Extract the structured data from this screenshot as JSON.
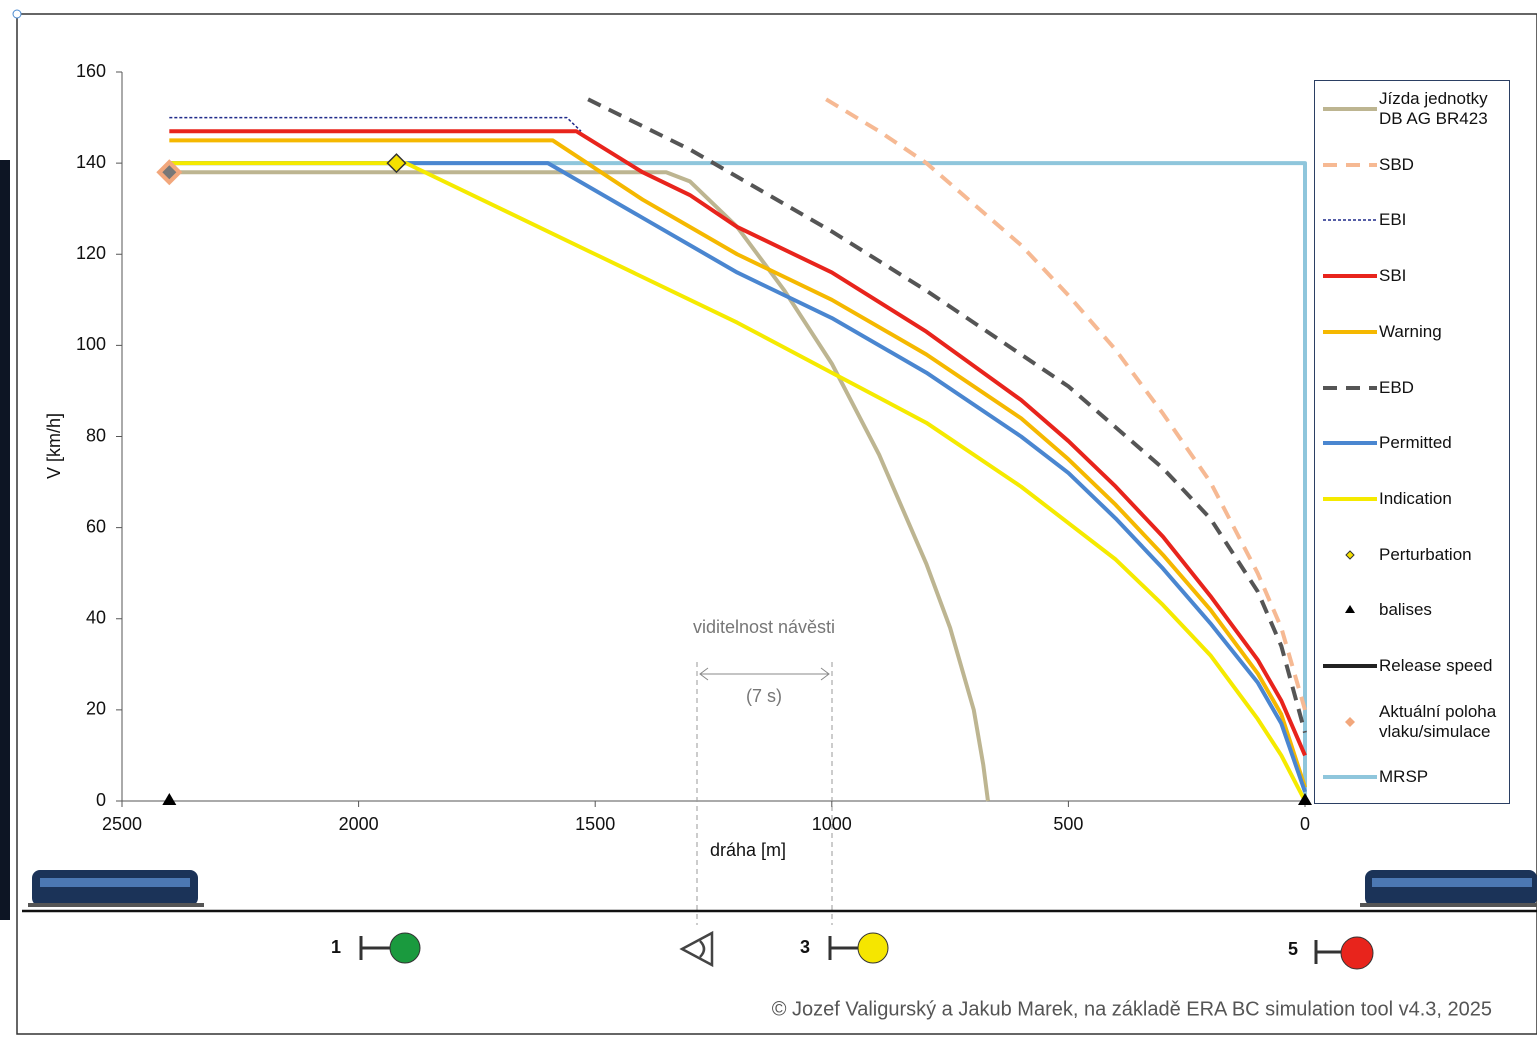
{
  "chart_data": {
    "type": "line",
    "ylabel": "V [km/h]",
    "xlabel": "dráha [m]",
    "xlim": [
      2500,
      0
    ],
    "ylim": [
      0,
      160
    ],
    "xticks": [
      2500,
      2000,
      1500,
      1000,
      500,
      0
    ],
    "yticks": [
      0,
      20,
      40,
      60,
      80,
      100,
      120,
      140,
      160
    ],
    "series": [
      {
        "name": "Jízda jednotky DB AG BR423",
        "color": "#bdb591",
        "style": "solid",
        "x": [
          2400,
          1350,
          1300,
          1200,
          1100,
          1000,
          900,
          800,
          750,
          700,
          680,
          670
        ],
        "values": [
          138,
          138,
          136,
          126,
          112,
          96,
          76,
          52,
          38,
          20,
          8,
          0
        ]
      },
      {
        "name": "SBD",
        "color": "#f6b993",
        "style": "dashed",
        "x": [
          1012,
          900,
          800,
          700,
          600,
          500,
          400,
          300,
          200,
          100,
          50,
          0
        ],
        "values": [
          154,
          147,
          140,
          131,
          122,
          111,
          99,
          85,
          70,
          50,
          38,
          20
        ]
      },
      {
        "name": "EBI",
        "color": "#1f2a8a",
        "style": "dotted",
        "x": [
          2400,
          1560,
          1530
        ],
        "values": [
          150,
          150,
          147
        ]
      },
      {
        "name": "SBI",
        "color": "#e8241c",
        "style": "solid",
        "x": [
          2400,
          1540,
          1400,
          1300,
          1200,
          1000,
          800,
          600,
          500,
          400,
          300,
          200,
          100,
          50,
          0
        ],
        "values": [
          147,
          147,
          138,
          133,
          126,
          116,
          103,
          88,
          79,
          69,
          58,
          45,
          31,
          22,
          10
        ]
      },
      {
        "name": "Warning",
        "color": "#f5b800",
        "style": "solid",
        "x": [
          2400,
          1590,
          1400,
          1300,
          1200,
          1000,
          800,
          600,
          500,
          400,
          300,
          200,
          100,
          50,
          0
        ],
        "values": [
          145,
          145,
          132,
          126,
          120,
          110,
          98,
          84,
          75,
          65,
          54,
          42,
          28,
          19,
          3
        ]
      },
      {
        "name": "EBD",
        "color": "#555555",
        "style": "dashed",
        "x": [
          1515,
          1300,
          1200,
          1000,
          800,
          600,
          500,
          400,
          300,
          200,
          100,
          50,
          0
        ],
        "values": [
          154,
          143,
          137,
          125,
          112,
          98,
          91,
          82,
          73,
          62,
          46,
          34,
          15
        ]
      },
      {
        "name": "Permitted",
        "color": "#4a86d0",
        "style": "solid",
        "x": [
          2400,
          1600,
          1400,
          1300,
          1200,
          1000,
          800,
          600,
          500,
          400,
          300,
          200,
          100,
          50,
          0
        ],
        "values": [
          140,
          140,
          128,
          122,
          116,
          106,
          94,
          80,
          72,
          62,
          51,
          39,
          26,
          17,
          2
        ]
      },
      {
        "name": "Indication",
        "color": "#f5ea00",
        "style": "solid",
        "x": [
          2400,
          1900,
          1500,
          1200,
          1000,
          800,
          600,
          500,
          400,
          300,
          200,
          100,
          50,
          0
        ],
        "values": [
          140,
          140,
          120,
          105,
          94,
          83,
          69,
          61,
          53,
          43,
          32,
          18,
          10,
          0
        ]
      },
      {
        "name": "Perturbation",
        "color": "#f5e000",
        "style": "diamond",
        "x": [
          1920
        ],
        "values": [
          140
        ]
      },
      {
        "name": "balises",
        "color": "#000000",
        "style": "triangle",
        "x": [
          2400,
          0
        ],
        "values": [
          0,
          0
        ]
      },
      {
        "name": "Release speed",
        "color": "#222222",
        "style": "solid",
        "x": [],
        "values": []
      },
      {
        "name": "Aktuální poloha vlaku/simulace",
        "color": "#f2a77c",
        "style": "position",
        "x": [
          2400
        ],
        "values": [
          138
        ]
      },
      {
        "name": "MRSP",
        "color": "#8fc6dc",
        "style": "solid",
        "x": [
          2400,
          0,
          0
        ],
        "values": [
          140,
          140,
          0
        ]
      }
    ],
    "annotation": {
      "text": "viditelnost návěsti",
      "duration": "(7 s)"
    },
    "signals": [
      "1",
      "3",
      "5"
    ],
    "copyright": "© Jozef Valigurský a Jakub Marek, na základě ERA BC simulation tool v4.3, 2025"
  }
}
